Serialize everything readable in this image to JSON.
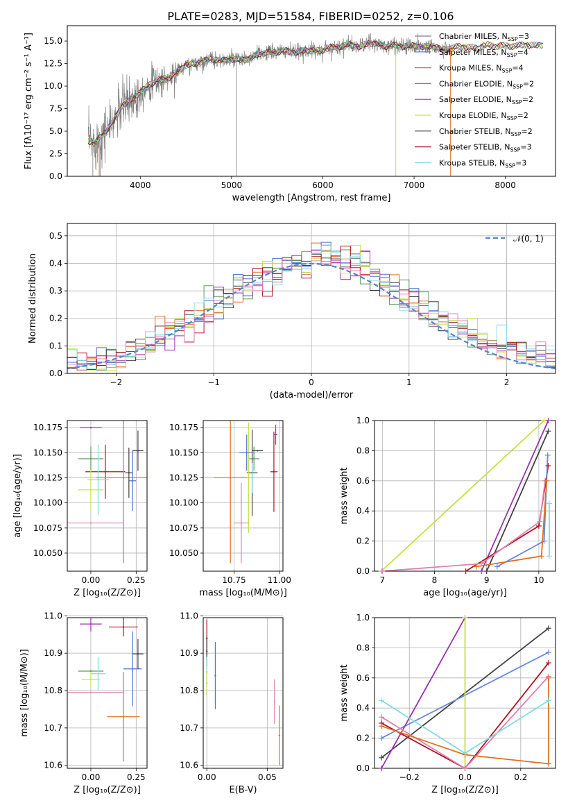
{
  "figure": {
    "title": "PLATE=0283, MJD=51584, FIBERID=0252, z=0.106"
  },
  "colors": {
    "chabrier_miles": "#7f7f7f",
    "salpeter_miles": "#4f6fd0",
    "kroupa_miles": "#e07020",
    "chabrier_elodie": "#5a9a5a",
    "salpeter_elodie": "#9a30b0",
    "kroupa_elodie": "#c8e040",
    "chabrier_stelib": "#404040",
    "salpeter_stelib": "#b01020",
    "kroupa_stelib": "#80dde0",
    "extra_pink": "#e080b0",
    "extra_blue": "#6688dd",
    "gaussian": "#5a82d0"
  },
  "chart_data": [
    {
      "id": "spectrum",
      "type": "line",
      "xlabel": "wavelength [Angstrom, rest frame]",
      "ylabel": "Flux [fλ10⁻¹⁷ erg cm⁻² s⁻¹ A⁻¹]",
      "xlim": [
        3200,
        8550
      ],
      "ylim": [
        0,
        16.7
      ],
      "xticks": [
        "4000",
        "5000",
        "6000",
        "7000",
        "8000"
      ],
      "xtick_values": [
        4000,
        5000,
        6000,
        7000,
        8000
      ],
      "yticks": [
        "0.0",
        "2.5",
        "5.0",
        "7.5",
        "10.0",
        "12.5",
        "15.0"
      ],
      "ytick_values": [
        0,
        2.5,
        5.0,
        7.5,
        10.0,
        12.5,
        15.0
      ],
      "legend": [
        {
          "label": "Chabrier MILES, N",
          "sub": "SSP",
          "tail": "=3",
          "color": "#7f7f7f"
        },
        {
          "label": "Salpeter MILES, N",
          "sub": "SSP",
          "tail": "=4",
          "color": "#4f6fd0"
        },
        {
          "label": "Kroupa MILES, N",
          "sub": "SSP",
          "tail": "=4",
          "color": "#e07020"
        },
        {
          "label": "Chabrier ELODIE, N",
          "sub": "SSP",
          "tail": "=2",
          "color": "#5a9a5a"
        },
        {
          "label": "Salpeter ELODIE, N",
          "sub": "SSP",
          "tail": "=2",
          "color": "#9a30b0"
        },
        {
          "label": "Kroupa ELODIE, N",
          "sub": "SSP",
          "tail": "=2",
          "color": "#c8e040"
        },
        {
          "label": "Chabrier STELIB, N",
          "sub": "SSP",
          "tail": "=2",
          "color": "#404040"
        },
        {
          "label": "Salpeter STELIB, N",
          "sub": "SSP",
          "tail": "=3",
          "color": "#b01020"
        },
        {
          "label": "Kroupa STELIB, N",
          "sub": "SSP",
          "tail": "=3",
          "color": "#80dde0"
        }
      ],
      "continuum": [
        [
          3420,
          4.0
        ],
        [
          3500,
          3.6
        ],
        [
          3600,
          4.8
        ],
        [
          3700,
          6.0
        ],
        [
          3800,
          7.8
        ],
        [
          3900,
          8.5
        ],
        [
          4000,
          9.3
        ],
        [
          4100,
          10.2
        ],
        [
          4200,
          10.6
        ],
        [
          4300,
          10.8
        ],
        [
          4400,
          11.6
        ],
        [
          4500,
          12.3
        ],
        [
          4600,
          12.5
        ],
        [
          4700,
          12.8
        ],
        [
          4800,
          13.0
        ],
        [
          4900,
          12.8
        ],
        [
          5000,
          13.0
        ],
        [
          5100,
          12.9
        ],
        [
          5200,
          13.0
        ],
        [
          5300,
          13.6
        ],
        [
          5400,
          13.7
        ],
        [
          5500,
          13.8
        ],
        [
          5600,
          13.9
        ],
        [
          5700,
          13.7
        ],
        [
          5800,
          14.0
        ],
        [
          5900,
          13.9
        ],
        [
          6000,
          14.0
        ],
        [
          6100,
          14.3
        ],
        [
          6200,
          14.4
        ],
        [
          6300,
          14.6
        ],
        [
          6400,
          14.3
        ],
        [
          6500,
          14.8
        ],
        [
          6600,
          14.6
        ],
        [
          6700,
          14.4
        ],
        [
          6800,
          14.5
        ],
        [
          6900,
          14.4
        ],
        [
          7000,
          14.5
        ],
        [
          7100,
          14.3
        ],
        [
          7200,
          14.5
        ],
        [
          7300,
          14.0
        ],
        [
          7400,
          14.2
        ],
        [
          7500,
          14.4
        ],
        [
          7600,
          14.3
        ],
        [
          7700,
          14.2
        ],
        [
          7800,
          14.6
        ],
        [
          7900,
          14.4
        ],
        [
          8000,
          14.5
        ],
        [
          8100,
          14.4
        ],
        [
          8200,
          14.6
        ],
        [
          8300,
          14.5
        ],
        [
          8400,
          14.6
        ]
      ]
    },
    {
      "id": "residuals",
      "type": "histogram",
      "xlabel": "(data-model)/error",
      "ylabel": "Normed distribution",
      "xlim": [
        -2.5,
        2.5
      ],
      "ylim": [
        0,
        0.545
      ],
      "xticks": [
        "−2",
        "−1",
        "0",
        "1",
        "2"
      ],
      "xtick_values": [
        -2,
        -1,
        0,
        1,
        2
      ],
      "yticks": [
        "0.0",
        "0.1",
        "0.2",
        "0.3",
        "0.4",
        "0.5"
      ],
      "ytick_values": [
        0,
        0.1,
        0.2,
        0.3,
        0.4,
        0.5
      ],
      "legend_label": "𝒩(0, 1)",
      "bin_width": 0.1
    },
    {
      "id": "age_vs_Z",
      "type": "scatter",
      "xlabel": "Z [log₁₀(Z/Z⊙)]",
      "ylabel": "age  [log₁₀(age/yr)]",
      "xlim": [
        -0.13,
        0.31
      ],
      "ylim": [
        10.032,
        10.182
      ],
      "xticks": [
        "0.00",
        "0.25"
      ],
      "xtick_values": [
        0,
        0.25
      ],
      "yticks": [
        "10.050",
        "10.075",
        "10.100",
        "10.125",
        "10.150",
        "10.175"
      ],
      "ytick_values": [
        10.05,
        10.075,
        10.1,
        10.125,
        10.15,
        10.175
      ],
      "points": [
        {
          "x": 0.0,
          "xerr": 0.06,
          "y": 10.175,
          "yerr": 0.0,
          "color": "#9a30b0"
        },
        {
          "x": 0.0,
          "xerr": 0.07,
          "y": 10.144,
          "yerr": 0.012,
          "color": "#5a9a5a"
        },
        {
          "x": 0.08,
          "xerr": 0.11,
          "y": 10.131,
          "yerr": 0.027,
          "color": "#b01020"
        },
        {
          "x": 0.04,
          "xerr": 0.06,
          "y": 10.123,
          "yerr": 0.035,
          "color": "#80dde0"
        },
        {
          "x": 0.0,
          "xerr": 0.07,
          "y": 10.113,
          "yerr": 0.02,
          "color": "#c8e040"
        },
        {
          "x": 0.0,
          "xerr": 0.18,
          "y": 10.08,
          "yerr": 0.0,
          "color": "#e080b0"
        },
        {
          "x": 0.18,
          "xerr": 0.15,
          "y": 10.125,
          "yerr": 0.085,
          "color": "#e07020"
        },
        {
          "x": 0.23,
          "xerr": 0.02,
          "y": 10.122,
          "yerr": 0.03,
          "color": "#4f6fd0"
        },
        {
          "x": 0.26,
          "xerr": 0.03,
          "y": 10.152,
          "yerr": 0.02,
          "color": "#404040"
        },
        {
          "x": 0.21,
          "xerr": 0.02,
          "y": 10.13,
          "yerr": 0.025,
          "color": "#404040"
        }
      ]
    },
    {
      "id": "age_vs_mass",
      "type": "scatter",
      "xlabel": "mass [log₁₀(M/M⊙)]",
      "ylabel": "",
      "xlim": [
        10.58,
        11.02
      ],
      "ylim": [
        10.032,
        10.182
      ],
      "xticks": [
        "10.75",
        "11.00"
      ],
      "xtick_values": [
        10.75,
        11.0
      ],
      "yticks": [
        "10.050",
        "10.075",
        "10.100",
        "10.125",
        "10.150",
        "10.175"
      ],
      "ytick_values": [
        10.05,
        10.075,
        10.1,
        10.125,
        10.15,
        10.175
      ],
      "points": [
        {
          "x": 10.98,
          "xerr": 0.01,
          "y": 10.168,
          "yerr": 0.01,
          "color": "#9a30b0"
        },
        {
          "x": 10.97,
          "xerr": 0.02,
          "y": 10.131,
          "yerr": 0.04,
          "color": "#b01020"
        },
        {
          "x": 10.86,
          "xerr": 0.03,
          "y": 10.144,
          "yerr": 0.012,
          "color": "#5a9a5a"
        },
        {
          "x": 10.85,
          "xerr": 0.03,
          "y": 10.13,
          "yerr": 0.043,
          "color": "#404040"
        },
        {
          "x": 10.83,
          "xerr": 0.01,
          "y": 10.125,
          "yerr": 0.055,
          "color": "#c8e040"
        },
        {
          "x": 10.82,
          "xerr": 0.04,
          "y": 10.15,
          "yerr": 0.018,
          "color": "#4f6fd0"
        },
        {
          "x": 10.85,
          "xerr": 0.02,
          "y": 10.125,
          "yerr": 0.015,
          "color": "#80dde0"
        },
        {
          "x": 10.79,
          "xerr": 0.04,
          "y": 10.08,
          "yerr": 0.04,
          "color": "#e080b0"
        },
        {
          "x": 10.73,
          "xerr": 0.09,
          "y": 10.125,
          "yerr": 0.085,
          "color": "#e07020"
        },
        {
          "x": 10.88,
          "xerr": 0.03,
          "y": 10.152,
          "yerr": 0.0,
          "color": "#404040"
        }
      ]
    },
    {
      "id": "massweight_vs_age",
      "type": "line",
      "xlabel": "age  [log₁₀(age/yr)]",
      "ylabel": "mass weight",
      "xlim": [
        6.85,
        10.32
      ],
      "ylim": [
        0,
        1.0
      ],
      "xticks": [
        "7",
        "8",
        "9",
        "10"
      ],
      "xtick_values": [
        7,
        8,
        9,
        10
      ],
      "yticks": [
        "0.0",
        "0.2",
        "0.4",
        "0.6",
        "0.8",
        "1.0"
      ],
      "ytick_values": [
        0,
        0.2,
        0.4,
        0.6,
        0.8,
        1.0
      ],
      "series": [
        {
          "color": "#c8e040",
          "points": [
            [
              6.98,
              0.0
            ],
            [
              10.1,
              1.0
            ]
          ]
        },
        {
          "color": "#9a30b0",
          "points": [
            [
              8.9,
              0.0
            ],
            [
              10.18,
              1.0
            ]
          ]
        },
        {
          "color": "#404040",
          "points": [
            [
              9.0,
              0.0
            ],
            [
              10.18,
              0.93
            ]
          ]
        },
        {
          "color": "#b01020",
          "points": [
            [
              8.6,
              0.0
            ],
            [
              10.0,
              0.3
            ],
            [
              10.18,
              0.7
            ]
          ]
        },
        {
          "color": "#e080b0",
          "points": [
            [
              7.0,
              0.0
            ],
            [
              8.9,
              0.05
            ],
            [
              10.02,
              0.33
            ],
            [
              10.12,
              0.6
            ]
          ]
        },
        {
          "color": "#6688dd",
          "points": [
            [
              9.2,
              0.03
            ],
            [
              10.1,
              0.2
            ],
            [
              10.17,
              0.77
            ]
          ]
        },
        {
          "color": "#e07020",
          "points": [
            [
              8.8,
              0.03
            ],
            [
              10.05,
              0.1
            ],
            [
              10.15,
              0.6
            ]
          ]
        },
        {
          "color": "#80dde0",
          "points": [
            [
              10.2,
              0.1
            ],
            [
              10.2,
              0.45
            ]
          ]
        }
      ]
    },
    {
      "id": "mass_vs_Z",
      "type": "scatter",
      "xlabel": "Z [log₁₀(Z/Z⊙)]",
      "ylabel": "mass [log₁₀(M/M⊙)]",
      "xlim": [
        -0.13,
        0.31
      ],
      "ylim": [
        10.592,
        10.995
      ],
      "xticks": [
        "0.00",
        "0.25"
      ],
      "xtick_values": [
        0,
        0.25
      ],
      "yticks": [
        "10.6",
        "10.7",
        "10.8",
        "10.9",
        "11.0"
      ],
      "ytick_values": [
        10.6,
        10.7,
        10.8,
        10.9,
        11.0
      ],
      "points": [
        {
          "x": 0.0,
          "xerr": 0.06,
          "y": 10.978,
          "yerr": 0.02,
          "color": "#9a30b0"
        },
        {
          "x": 0.18,
          "xerr": 0.08,
          "y": 10.97,
          "yerr": 0.025,
          "color": "#b01020"
        },
        {
          "x": 0.0,
          "xerr": 0.07,
          "y": 10.852,
          "yerr": 0.0,
          "color": "#5a9a5a"
        },
        {
          "x": 0.04,
          "xerr": 0.04,
          "y": 10.845,
          "yerr": 0.045,
          "color": "#80dde0"
        },
        {
          "x": 0.0,
          "xerr": 0.05,
          "y": 10.83,
          "yerr": 0.02,
          "color": "#c8e040"
        },
        {
          "x": 0.0,
          "xerr": 0.18,
          "y": 10.795,
          "yerr": 0.0,
          "color": "#e080b0"
        },
        {
          "x": 0.18,
          "xerr": 0.09,
          "y": 10.73,
          "yerr": 0.12,
          "color": "#e07020"
        },
        {
          "x": 0.23,
          "xerr": 0.05,
          "y": 10.858,
          "yerr": 0.1,
          "color": "#4f6fd0"
        },
        {
          "x": 0.26,
          "xerr": 0.03,
          "y": 10.898,
          "yerr": 0.04,
          "color": "#404040"
        }
      ]
    },
    {
      "id": "mass_vs_ebv",
      "type": "scatter",
      "xlabel": "E(B-V)",
      "ylabel": "",
      "xlim": [
        -0.003,
        0.063
      ],
      "ylim": [
        10.592,
        10.995
      ],
      "xticks": [
        "0.00",
        "0.05"
      ],
      "xtick_values": [
        0,
        0.05
      ],
      "yticks": [
        "10.6",
        "10.7",
        "10.8",
        "10.9",
        "11.0"
      ],
      "ytick_values": [
        10.6,
        10.7,
        10.8,
        10.9,
        11.0
      ],
      "points": [
        {
          "x": 0.0,
          "xerr": 0.0,
          "y": 10.94,
          "yerr": 0.05,
          "color": "#b01020"
        },
        {
          "x": 0.0,
          "xerr": 0.0,
          "y": 10.905,
          "yerr": 0.04,
          "color": "#404040"
        },
        {
          "x": 0.0,
          "xerr": 0.0,
          "y": 10.85,
          "yerr": 0.04,
          "color": "#80dde0"
        },
        {
          "x": 0.0,
          "xerr": 0.0,
          "y": 10.82,
          "yerr": 0.035,
          "color": "#c8e040"
        },
        {
          "x": 0.007,
          "xerr": 0.0,
          "y": 10.84,
          "yerr": 0.09,
          "color": "#4f6fd0"
        },
        {
          "x": 0.056,
          "xerr": 0.0,
          "y": 10.77,
          "yerr": 0.06,
          "color": "#e080b0"
        },
        {
          "x": 0.06,
          "xerr": 0.0,
          "y": 10.68,
          "yerr": 0.08,
          "color": "#e07020"
        }
      ]
    },
    {
      "id": "massweight_vs_Z",
      "type": "line",
      "xlabel": "Z [log₁₀(Z/Z⊙)]",
      "ylabel": "mass weight",
      "xlim": [
        -0.325,
        0.325
      ],
      "ylim": [
        0,
        1.0
      ],
      "xticks": [
        "−0.2",
        "0.0",
        "0.2"
      ],
      "xtick_values": [
        -0.2,
        0.0,
        0.2
      ],
      "yticks": [
        "0.0",
        "0.2",
        "0.4",
        "0.6",
        "0.8",
        "1.0"
      ],
      "ytick_values": [
        0,
        0.2,
        0.4,
        0.6,
        0.8,
        1.0
      ],
      "series": [
        {
          "color": "#404040",
          "points": [
            [
              -0.3,
              0.07
            ],
            [
              0.3,
              0.93
            ]
          ]
        },
        {
          "color": "#6688dd",
          "points": [
            [
              -0.3,
              0.2
            ],
            [
              0.3,
              0.77
            ]
          ]
        },
        {
          "color": "#9a30b0",
          "points": [
            [
              -0.3,
              0.0
            ],
            [
              0.0,
              1.0
            ]
          ]
        },
        {
          "color": "#c8e040",
          "points": [
            [
              0.0,
              0.0
            ],
            [
              0.0,
              1.0
            ]
          ]
        },
        {
          "color": "#b01020",
          "points": [
            [
              -0.3,
              0.3
            ],
            [
              0.0,
              0.0
            ],
            [
              0.3,
              0.7
            ]
          ]
        },
        {
          "color": "#e080b0",
          "points": [
            [
              -0.3,
              0.34
            ],
            [
              0.0,
              0.0
            ],
            [
              0.3,
              0.61
            ]
          ]
        },
        {
          "color": "#e07020",
          "points": [
            [
              -0.3,
              0.28
            ],
            [
              0.0,
              0.09
            ],
            [
              0.3,
              0.03
            ],
            [
              0.3,
              0.6
            ]
          ]
        },
        {
          "color": "#80dde0",
          "points": [
            [
              -0.3,
              0.45
            ],
            [
              0.0,
              0.1
            ],
            [
              0.3,
              0.45
            ]
          ]
        }
      ]
    }
  ]
}
